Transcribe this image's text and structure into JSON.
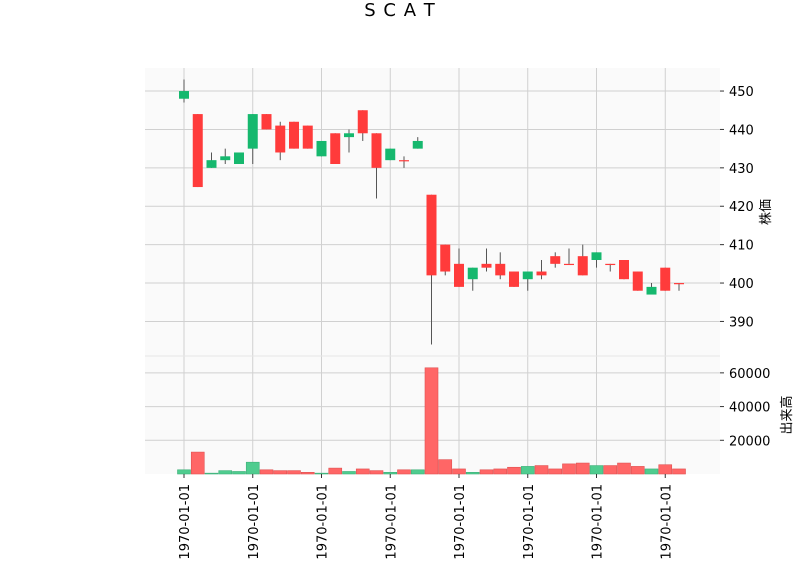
{
  "chart_data": {
    "type": "candlestick",
    "title": "S C A T",
    "price_panel": {
      "ylabel": "株価",
      "ylim": [
        381,
        456
      ],
      "yticks": [
        390,
        400,
        410,
        420,
        430,
        440,
        450
      ],
      "ytick_labels": [
        "390",
        "400",
        "410",
        "420",
        "430",
        "440",
        "450"
      ]
    },
    "volume_panel": {
      "ylabel": "出来高",
      "ylim": [
        0,
        70000
      ],
      "yticks": [
        20000,
        40000,
        60000
      ],
      "ytick_labels": [
        "20000",
        "40000",
        "60000"
      ]
    },
    "x_tick_labels": [
      "1970-01-01",
      "1970-01-01",
      "1970-01-01",
      "1970-01-01",
      "1970-01-01",
      "1970-01-01",
      "1970-01-01",
      "1970-01-01"
    ],
    "x_tick_positions": [
      0,
      5,
      10,
      15,
      20,
      25,
      30,
      35
    ],
    "grid": true,
    "up_color": "#ff3b3b",
    "down_color": "#16b86e",
    "up_volume_color": "#ff6666",
    "down_volume_color": "#4fcc8f",
    "plot_background": "#fafafa",
    "grid_color": "#d0d0d0",
    "candles": [
      {
        "open": 450,
        "high": 453,
        "low": 447,
        "close": 448,
        "volume": 2500
      },
      {
        "open": 425,
        "high": 444,
        "low": 425,
        "close": 444,
        "volume": 13000
      },
      {
        "open": 432,
        "high": 434,
        "low": 430,
        "close": 430,
        "volume": 500
      },
      {
        "open": 433,
        "high": 435,
        "low": 431,
        "close": 432,
        "volume": 2000
      },
      {
        "open": 434,
        "high": 434,
        "low": 431,
        "close": 431,
        "volume": 1500
      },
      {
        "open": 444,
        "high": 444,
        "low": 431,
        "close": 435,
        "volume": 7000
      },
      {
        "open": 440,
        "high": 444,
        "low": 440,
        "close": 444,
        "volume": 2500
      },
      {
        "open": 434,
        "high": 442,
        "low": 432,
        "close": 441,
        "volume": 2000
      },
      {
        "open": 435,
        "high": 442,
        "low": 435,
        "close": 442,
        "volume": 2000
      },
      {
        "open": 435,
        "high": 441,
        "low": 435,
        "close": 441,
        "volume": 1000
      },
      {
        "open": 437,
        "high": 437,
        "low": 433,
        "close": 433,
        "volume": 500
      },
      {
        "open": 431,
        "high": 439,
        "low": 431,
        "close": 439,
        "volume": 3500
      },
      {
        "open": 439,
        "high": 440,
        "low": 434,
        "close": 438,
        "volume": 1500
      },
      {
        "open": 439,
        "high": 445,
        "low": 437,
        "close": 445,
        "volume": 3000
      },
      {
        "open": 430,
        "high": 439,
        "low": 422,
        "close": 439,
        "volume": 2000
      },
      {
        "open": 435,
        "high": 435,
        "low": 432,
        "close": 432,
        "volume": 1000
      },
      {
        "open": 432,
        "high": 433,
        "low": 430,
        "close": 432,
        "volume": 2500
      },
      {
        "open": 437,
        "high": 438,
        "low": 435,
        "close": 435,
        "volume": 2500
      },
      {
        "open": 402,
        "high": 423,
        "low": 384,
        "close": 423,
        "volume": 63000
      },
      {
        "open": 403,
        "high": 410,
        "low": 402,
        "close": 410,
        "volume": 8500
      },
      {
        "open": 399,
        "high": 409,
        "low": 399,
        "close": 405,
        "volume": 3000
      },
      {
        "open": 404,
        "high": 404,
        "low": 398,
        "close": 401,
        "volume": 1000
      },
      {
        "open": 404,
        "high": 409,
        "low": 403,
        "close": 405,
        "volume": 2500
      },
      {
        "open": 402,
        "high": 408,
        "low": 401,
        "close": 405,
        "volume": 3000
      },
      {
        "open": 399,
        "high": 403,
        "low": 399,
        "close": 403,
        "volume": 4000
      },
      {
        "open": 403,
        "high": 403,
        "low": 398,
        "close": 401,
        "volume": 4500
      },
      {
        "open": 402,
        "high": 406,
        "low": 401,
        "close": 403,
        "volume": 5000
      },
      {
        "open": 405,
        "high": 408,
        "low": 404,
        "close": 407,
        "volume": 3000
      },
      {
        "open": 405,
        "high": 409,
        "low": 405,
        "close": 405,
        "volume": 6000
      },
      {
        "open": 402,
        "high": 410,
        "low": 402,
        "close": 407,
        "volume": 6500
      },
      {
        "open": 408,
        "high": 408,
        "low": 404,
        "close": 406,
        "volume": 5000
      },
      {
        "open": 405,
        "high": 405,
        "low": 403,
        "close": 405,
        "volume": 5000
      },
      {
        "open": 401,
        "high": 406,
        "low": 401,
        "close": 406,
        "volume": 6500
      },
      {
        "open": 398,
        "high": 403,
        "low": 398,
        "close": 403,
        "volume": 4500
      },
      {
        "open": 399,
        "high": 400,
        "low": 397,
        "close": 397,
        "volume": 3000
      },
      {
        "open": 398,
        "high": 404,
        "low": 398,
        "close": 404,
        "volume": 5500
      },
      {
        "open": 400,
        "high": 400,
        "low": 398,
        "close": 400,
        "volume": 3000
      }
    ]
  }
}
